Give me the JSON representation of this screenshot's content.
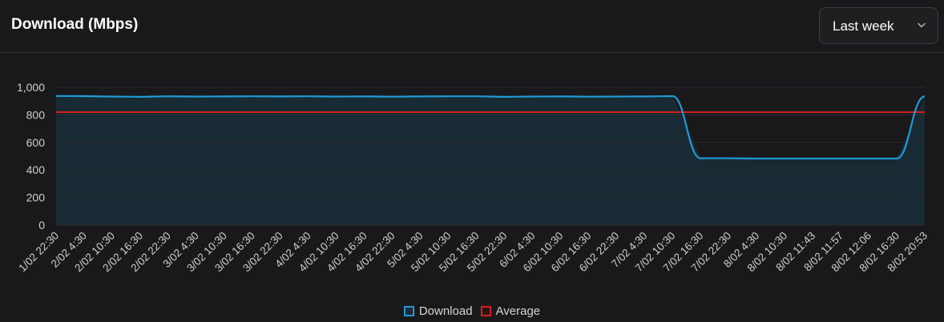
{
  "header": {
    "title": "Download (Mbps)",
    "range_select": {
      "value": "Last week",
      "icon": "chevron-down-icon"
    }
  },
  "legend": [
    {
      "label": "Download",
      "color": "#1e9bd7"
    },
    {
      "label": "Average",
      "color": "#d41f1f"
    }
  ],
  "colors": {
    "download_line": "#1e9bd7",
    "download_fill": "#182a33",
    "average_line": "#d41f1f",
    "grid": "#2c2c31",
    "tick_text": "#cfcfcf"
  },
  "chart_data": {
    "type": "area",
    "title": "Download (Mbps)",
    "xlabel": "",
    "ylabel": "",
    "ylim": [
      0,
      1000
    ],
    "yticks": [
      "0",
      "200",
      "400",
      "600",
      "800",
      "1,000"
    ],
    "grid": true,
    "legend_position": "bottom",
    "categories": [
      "1/02 22:30",
      "2/02 4:30",
      "2/02 10:30",
      "2/02 16:30",
      "2/02 22:30",
      "3/02 4:30",
      "3/02 10:30",
      "3/02 16:30",
      "3/02 22:30",
      "4/02 4:30",
      "4/02 10:30",
      "4/02 16:30",
      "4/02 22:30",
      "5/02 4:30",
      "5/02 10:30",
      "5/02 16:30",
      "5/02 22:30",
      "6/02 4:30",
      "6/02 10:30",
      "6/02 16:30",
      "6/02 22:30",
      "7/02 4:30",
      "7/02 10:30",
      "7/02 16:30",
      "7/02 22:30",
      "8/02 4:30",
      "8/02 10:30",
      "8/02 11:43",
      "8/02 11:57",
      "8/02 12:06",
      "8/02 16:30",
      "8/02 20:53"
    ],
    "series": [
      {
        "name": "Download",
        "type": "area",
        "values": [
          937,
          936,
          933,
          931,
          935,
          933,
          934,
          935,
          934,
          935,
          933,
          934,
          932,
          934,
          935,
          935,
          931,
          933,
          934,
          932,
          933,
          934,
          936,
          485,
          485,
          483,
          483,
          483,
          483,
          483,
          483,
          934
        ]
      },
      {
        "name": "Average",
        "type": "line",
        "values": [
          820,
          820,
          820,
          820,
          820,
          820,
          820,
          820,
          820,
          820,
          820,
          820,
          820,
          820,
          820,
          820,
          820,
          820,
          820,
          820,
          820,
          820,
          820,
          820,
          820,
          820,
          820,
          820,
          820,
          820,
          820,
          820
        ]
      }
    ]
  }
}
